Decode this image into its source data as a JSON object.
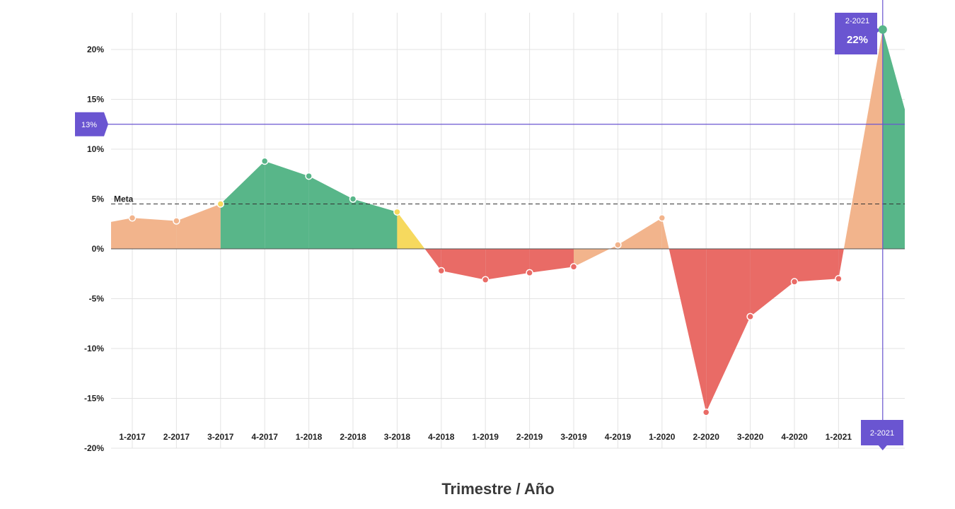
{
  "chart_data": {
    "type": "area",
    "xlabel": "Trimestre / Año",
    "categories": [
      "1-2017",
      "2-2017",
      "3-2017",
      "4-2017",
      "1-2018",
      "2-2018",
      "3-2018",
      "4-2018",
      "1-2019",
      "2-2019",
      "3-2019",
      "4-2019",
      "1-2020",
      "2-2020",
      "3-2020",
      "4-2020",
      "1-2021",
      "2-2021"
    ],
    "values": [
      3.1,
      2.8,
      4.5,
      8.8,
      7.3,
      5.0,
      3.7,
      -2.2,
      -3.1,
      -2.4,
      -1.8,
      0.4,
      3.1,
      -16.4,
      -6.8,
      -3.3,
      -3.0,
      22.0
    ],
    "y_ticks": [
      "20%",
      "15%",
      "10%",
      "5%",
      "0%",
      "-5%",
      "-10%",
      "-15%",
      "-20%"
    ],
    "y_tick_values": [
      20,
      15,
      10,
      5,
      0,
      -5,
      -10,
      -15,
      -20
    ],
    "ylim": [
      -20,
      22
    ],
    "meta": {
      "label": "Meta",
      "value": 4.5
    },
    "reference_line": {
      "label": "13%",
      "value": 12.5
    },
    "highlight": {
      "category": "2-2021",
      "value_label": "22%",
      "x_label": "2-2021"
    },
    "colors": {
      "green": "#58b689",
      "yellow": "#f6d95e",
      "orange": "#f2b48c",
      "red": "#e96b66",
      "accent": "#6a55d1",
      "grid": "#e3e3e3"
    },
    "grid": true
  }
}
